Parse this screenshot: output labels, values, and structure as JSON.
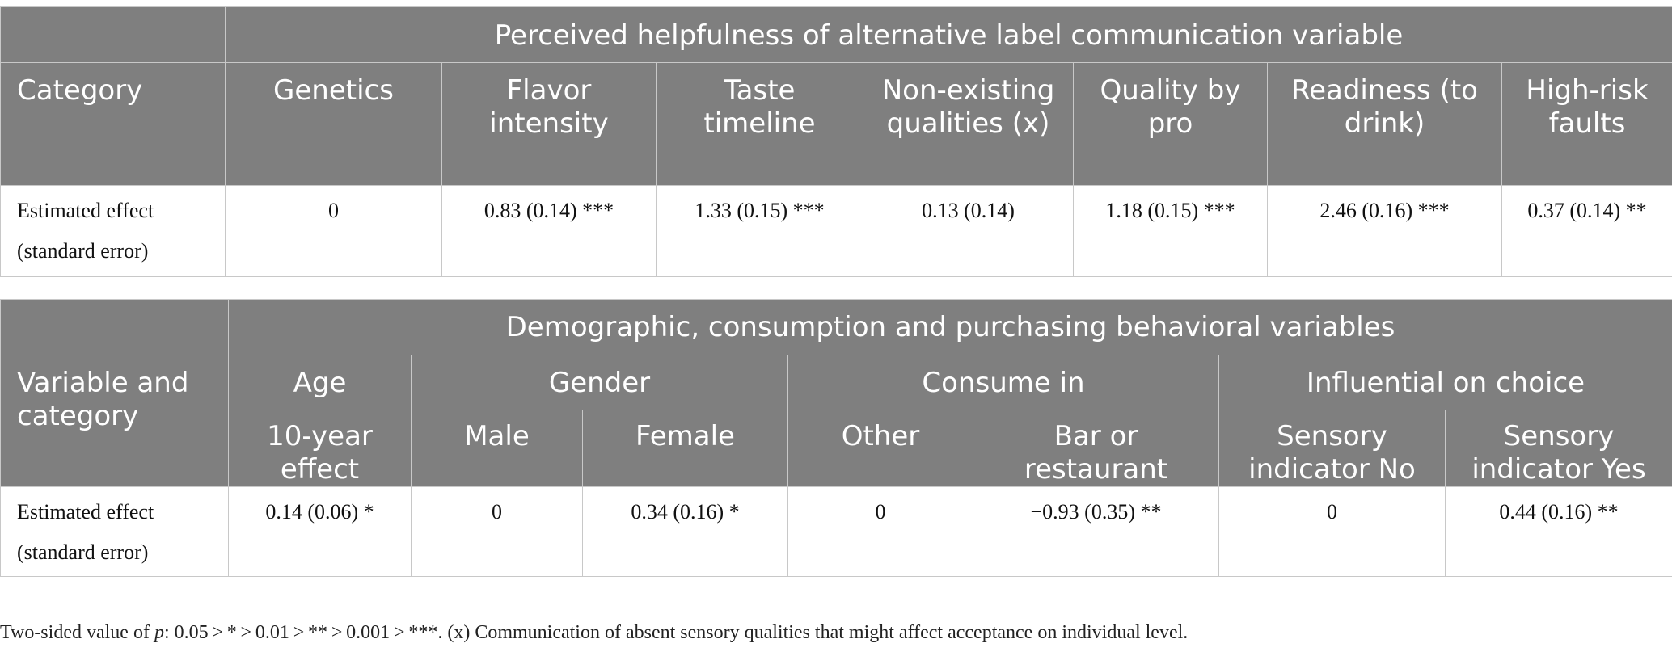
{
  "table1": {
    "group_header": "Perceived helpfulness of alternative label communication variable",
    "columns": [
      "Category",
      "Genetics",
      "Flavor intensity",
      "Taste timeline",
      "Non-existing qualities (x)",
      "Quality by pro",
      "Readiness (to drink)",
      "High-risk faults"
    ],
    "row": {
      "label": "Estimated effect (standard error)",
      "values": [
        "0",
        "0.83 (0.14) ***",
        "1.33 (0.15) ***",
        "0.13 (0.14)",
        "1.18 (0.15) ***",
        "2.46 (0.16) ***",
        "0.37 (0.14) **"
      ]
    }
  },
  "table2": {
    "group_header": "Demographic, consumption and purchasing behavioral variables",
    "row_header": "Variable and category",
    "groups": [
      "Age",
      "Gender",
      "Consume in",
      "Influential on choice"
    ],
    "subcolumns": [
      "10-year effect",
      "Male",
      "Female",
      "Other",
      "Bar or restaurant",
      "Sensory indicator No",
      "Sensory indicator Yes"
    ],
    "row": {
      "label": "Estimated effect (standard error)",
      "values": [
        "0.14 (0.06) *",
        "0",
        "0.34 (0.16) *",
        "0",
        "−0.93 (0.35) **",
        "0",
        "0.44 (0.16) **"
      ]
    }
  },
  "footnote": {
    "prefix": "Two-sided value of ",
    "p": "p",
    "text": ": 0.05 > * > 0.01 > ** > 0.001 > ***. (x) Communication of absent sensory qualities that might affect acceptance on individual level."
  }
}
